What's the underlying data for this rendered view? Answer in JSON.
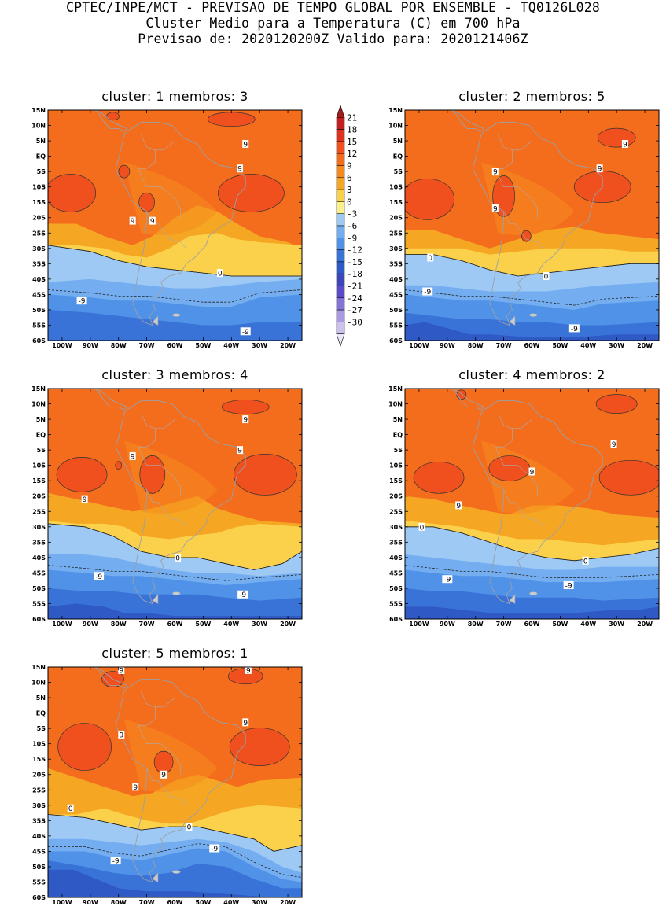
{
  "header": {
    "line1": "CPTEC/INPE/MCT - PREVISAO DE TEMPO GLOBAL POR ENSEMBLE - TQ0126L028",
    "line2": "Cluster Medio para a Temperatura (C) em 700 hPa",
    "line3": "Previsao de: 2020120200Z   Valido para: 2020121406Z"
  },
  "axes": {
    "lat_labels": [
      "15N",
      "10N",
      "5N",
      "EQ",
      "5S",
      "10S",
      "15S",
      "20S",
      "25S",
      "30S",
      "35S",
      "40S",
      "45S",
      "50S",
      "55S",
      "60S"
    ],
    "lon_labels": [
      "100W",
      "90W",
      "80W",
      "70W",
      "60W",
      "50W",
      "40W",
      "30W",
      "20W"
    ]
  },
  "colorbar": {
    "labels": [
      "21",
      "18",
      "15",
      "12",
      "9",
      "6",
      "3",
      "0",
      "-3",
      "-6",
      "-9",
      "-12",
      "-15",
      "-18",
      "-21",
      "-24",
      "-27",
      "-30"
    ],
    "colors": [
      "#a51c1c",
      "#c41e1e",
      "#e0301e",
      "#f0501e",
      "#f46d1d",
      "#f58b1e",
      "#f5a623",
      "#fbd14b",
      "#fdf08a",
      "#9ec9f5",
      "#74aef0",
      "#4f92e8",
      "#3a73d8",
      "#2f59c4",
      "#3e45b8",
      "#5b4bc8",
      "#8574d8",
      "#aa9ae4",
      "#cdc2ee",
      "#ebe6f8"
    ]
  },
  "panels": [
    {
      "title": "cluster: 1   membros: 3",
      "labels": [
        {
          "t": "9",
          "lon": -35,
          "lat": 4
        },
        {
          "t": "9",
          "lon": -37,
          "lat": -4
        },
        {
          "t": "9",
          "lon": -68,
          "lat": -21
        },
        {
          "t": "9",
          "lon": -75,
          "lat": -21
        },
        {
          "t": "0",
          "lon": -44,
          "lat": -38
        },
        {
          "t": "-9",
          "lon": -93,
          "lat": -47
        },
        {
          "t": "-9",
          "lon": -35,
          "lat": -57
        }
      ]
    },
    {
      "title": "cluster: 2   membros: 5",
      "labels": [
        {
          "t": "9",
          "lon": -27,
          "lat": 4
        },
        {
          "t": "9",
          "lon": -36,
          "lat": -4
        },
        {
          "t": "9",
          "lon": -73,
          "lat": -5
        },
        {
          "t": "9",
          "lon": -73,
          "lat": -17
        },
        {
          "t": "0",
          "lon": -96,
          "lat": -33
        },
        {
          "t": "0",
          "lon": -55,
          "lat": -39
        },
        {
          "t": "-9",
          "lon": -97,
          "lat": -44
        },
        {
          "t": "-9",
          "lon": -45,
          "lat": -56
        }
      ]
    },
    {
      "title": "cluster: 3   membros: 4",
      "labels": [
        {
          "t": "9",
          "lon": -35,
          "lat": 5
        },
        {
          "t": "9",
          "lon": -37,
          "lat": -5
        },
        {
          "t": "9",
          "lon": -75,
          "lat": -7
        },
        {
          "t": "9",
          "lon": -92,
          "lat": -21
        },
        {
          "t": "0",
          "lon": -59,
          "lat": -40
        },
        {
          "t": "-9",
          "lon": -87,
          "lat": -46
        },
        {
          "t": "-9",
          "lon": -36,
          "lat": -52
        }
      ]
    },
    {
      "title": "cluster: 4   membros: 2",
      "labels": [
        {
          "t": "9",
          "lon": -31,
          "lat": -3
        },
        {
          "t": "9",
          "lon": -60,
          "lat": -12
        },
        {
          "t": "9",
          "lon": -86,
          "lat": -23
        },
        {
          "t": "0",
          "lon": -99,
          "lat": -30
        },
        {
          "t": "0",
          "lon": -41,
          "lat": -41
        },
        {
          "t": "-9",
          "lon": -90,
          "lat": -47
        },
        {
          "t": "-9",
          "lon": -47,
          "lat": -49
        }
      ]
    },
    {
      "title": "cluster: 5   membros: 1",
      "labels": [
        {
          "t": "9",
          "lon": -79,
          "lat": 14
        },
        {
          "t": "9",
          "lon": -34,
          "lat": 14
        },
        {
          "t": "9",
          "lon": -35,
          "lat": -3
        },
        {
          "t": "9",
          "lon": -79,
          "lat": -7
        },
        {
          "t": "9",
          "lon": -64,
          "lat": -20
        },
        {
          "t": "9",
          "lon": -74,
          "lat": -24
        },
        {
          "t": "0",
          "lon": -97,
          "lat": -31
        },
        {
          "t": "0",
          "lon": -55,
          "lat": -37
        },
        {
          "t": "-9",
          "lon": -46,
          "lat": -44
        },
        {
          "t": "-9",
          "lon": -81,
          "lat": -48
        }
      ]
    }
  ]
}
